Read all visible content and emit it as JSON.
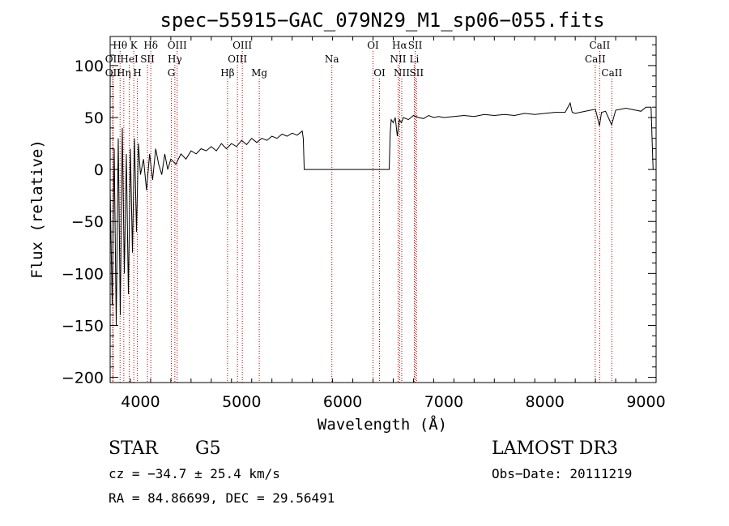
{
  "chart_data": {
    "type": "line",
    "title": "spec−55915−GAC_079N29_M1_sp06−055.fits",
    "xlabel": "Wavelength (Å)",
    "ylabel": "Flux (relative)",
    "xlim": [
      3700,
      9100
    ],
    "ylim": [
      -205,
      128
    ],
    "xticks": [
      4000,
      5000,
      6000,
      7000,
      8000,
      9000
    ],
    "xtick_labels": [
      "4000",
      "5000",
      "6000",
      "7000",
      "8000",
      "9000"
    ],
    "yticks": [
      100,
      50,
      0,
      -50,
      -100,
      -150,
      -200
    ],
    "ytick_labels": [
      "100",
      "50",
      "0",
      "−50",
      "−100",
      "−150",
      "−200"
    ],
    "grid": false,
    "series": [
      {
        "name": "flux",
        "x": [
          3700,
          3720,
          3740,
          3760,
          3780,
          3800,
          3820,
          3840,
          3860,
          3880,
          3900,
          3920,
          3940,
          3960,
          3980,
          4000,
          4030,
          4060,
          4090,
          4120,
          4150,
          4180,
          4210,
          4240,
          4270,
          4300,
          4350,
          4400,
          4450,
          4500,
          4550,
          4600,
          4650,
          4700,
          4750,
          4800,
          4850,
          4900,
          4950,
          5000,
          5050,
          5100,
          5150,
          5200,
          5250,
          5300,
          5350,
          5400,
          5450,
          5500,
          5550,
          5600,
          5610,
          5620,
          5700,
          5800,
          5900,
          6000,
          6100,
          6200,
          6300,
          6400,
          6460,
          6470,
          6480,
          6500,
          6520,
          6540,
          6560,
          6580,
          6600,
          6650,
          6700,
          6750,
          6800,
          6850,
          6900,
          6950,
          7000,
          7100,
          7200,
          7300,
          7400,
          7500,
          7600,
          7700,
          7800,
          7900,
          8000,
          8100,
          8200,
          8250,
          8270,
          8300,
          8400,
          8500,
          8540,
          8560,
          8600,
          8660,
          8700,
          8800,
          8900,
          8950,
          9000,
          9050,
          9060,
          9070
        ],
        "y": [
          -20,
          -130,
          20,
          -150,
          30,
          -140,
          40,
          -100,
          15,
          -120,
          20,
          -80,
          30,
          -60,
          25,
          -5,
          10,
          -20,
          15,
          -10,
          20,
          5,
          -5,
          15,
          0,
          10,
          5,
          15,
          10,
          18,
          15,
          20,
          18,
          22,
          18,
          25,
          20,
          25,
          22,
          28,
          24,
          30,
          26,
          30,
          28,
          32,
          30,
          34,
          32,
          35,
          33,
          37,
          30,
          0,
          0,
          0,
          0,
          0,
          0,
          0,
          0,
          0,
          0,
          35,
          48,
          45,
          50,
          32,
          48,
          45,
          50,
          48,
          52,
          50,
          49,
          52,
          50,
          51,
          50,
          51,
          52,
          51,
          53,
          52,
          53,
          52,
          54,
          53,
          54,
          55,
          55,
          64,
          55,
          54,
          56,
          58,
          42,
          55,
          56,
          43,
          57,
          59,
          57,
          56,
          60,
          60,
          30,
          0
        ]
      }
    ],
    "lines": [
      {
        "label": "Hθ",
        "wavelength": 3798,
        "row": 1
      },
      {
        "label": "OII",
        "wavelength": 3727,
        "row": 2
      },
      {
        "label": "OII",
        "wavelength": 3727,
        "row": 3
      },
      {
        "label": "Hη",
        "wavelength": 3835,
        "row": 3
      },
      {
        "label": "K",
        "wavelength": 3934,
        "row": 1
      },
      {
        "label": "HeI",
        "wavelength": 3889,
        "row": 2
      },
      {
        "label": "H",
        "wavelength": 3969,
        "row": 3
      },
      {
        "label": "SII",
        "wavelength": 4069,
        "row": 2
      },
      {
        "label": "Hδ",
        "wavelength": 4102,
        "row": 1
      },
      {
        "label": "OIII",
        "wavelength": 4363,
        "row": 1
      },
      {
        "label": "Hγ",
        "wavelength": 4340,
        "row": 2
      },
      {
        "label": "G",
        "wavelength": 4305,
        "row": 3
      },
      {
        "label": "OIII",
        "wavelength": 5007,
        "row": 1
      },
      {
        "label": "OIII",
        "wavelength": 4959,
        "row": 2
      },
      {
        "label": "Hβ",
        "wavelength": 4861,
        "row": 3
      },
      {
        "label": "Mg",
        "wavelength": 5175,
        "row": 3
      },
      {
        "label": "Na",
        "wavelength": 5893,
        "row": 2
      },
      {
        "label": "OI",
        "wavelength": 6300,
        "row": 1
      },
      {
        "label": "OI",
        "wavelength": 6364,
        "row": 3
      },
      {
        "label": "Hα",
        "wavelength": 6563,
        "row": 1
      },
      {
        "label": "NII",
        "wavelength": 6548,
        "row": 2
      },
      {
        "label": "NII",
        "wavelength": 6584,
        "row": 3
      },
      {
        "label": "SII",
        "wavelength": 6717,
        "row": 1
      },
      {
        "label": "Li",
        "wavelength": 6708,
        "row": 2
      },
      {
        "label": "SII",
        "wavelength": 6731,
        "row": 3
      },
      {
        "label": "CaII",
        "wavelength": 8542,
        "row": 1
      },
      {
        "label": "CaII",
        "wavelength": 8498,
        "row": 2
      },
      {
        "label": "CaII",
        "wavelength": 8662,
        "row": 3
      }
    ]
  },
  "info": {
    "class_label": "STAR",
    "subclass": "G5",
    "survey": "LAMOST DR3",
    "cz": "cz = −34.7 ± 25.4 km/s",
    "obs_date": "Obs−Date: 20111219",
    "coords": "RA =  84.86699, DEC =  29.56491"
  }
}
